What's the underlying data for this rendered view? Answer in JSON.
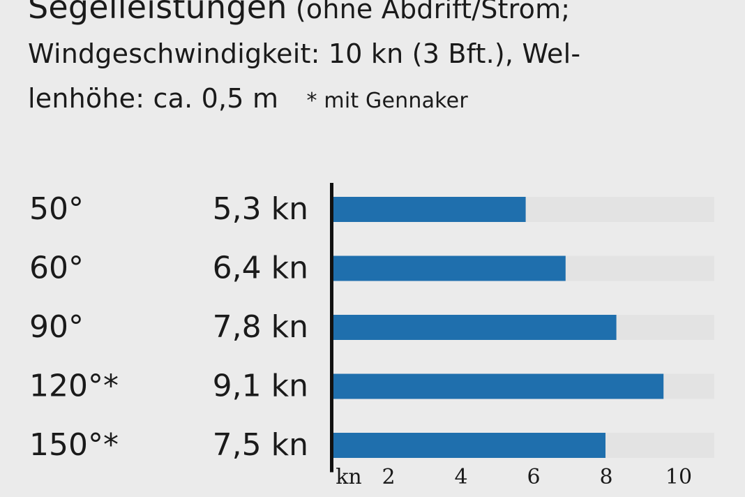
{
  "header": {
    "title": "Segelleistungen",
    "subtitle_line1": "(ohne Abdrift/Strom;",
    "subtitle_line2": "Windgeschwindigkeit: 10 kn (3 Bft.), Wel-",
    "subtitle_line3": "lenhöhe: ca. 0,5 m",
    "note": "* mit Gennaker"
  },
  "colors": {
    "background": "#ebebeb",
    "bar": "#1f6fad",
    "track": "#e3e3e3",
    "axis": "#111111"
  },
  "chart_data": {
    "type": "bar",
    "orientation": "horizontal",
    "categories": [
      "50°",
      "60°",
      "90°",
      "120°*",
      "150°*"
    ],
    "values": [
      5.3,
      6.4,
      7.8,
      9.1,
      7.5
    ],
    "value_labels": [
      "5,3 kn",
      "6,4 kn",
      "7,8 kn",
      "9,1 kn",
      "7,5 kn"
    ],
    "axis_unit": "kn",
    "ticks": [
      "2",
      "4",
      "6",
      "8",
      "10"
    ],
    "tick_values": [
      2,
      4,
      6,
      8,
      10
    ],
    "xlim": [
      0,
      10.5
    ],
    "grid": false,
    "legend": "none"
  }
}
